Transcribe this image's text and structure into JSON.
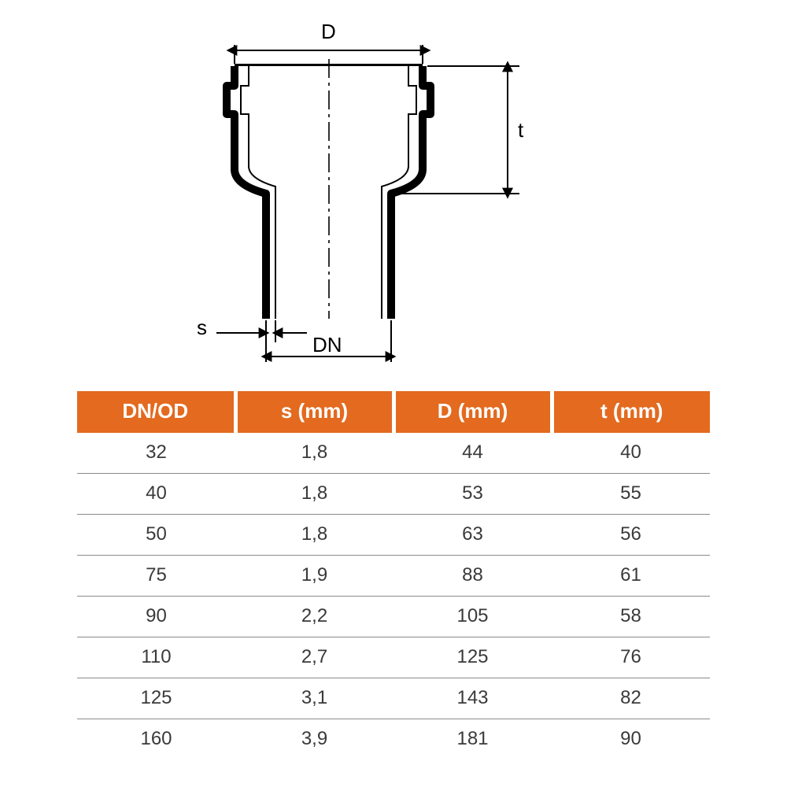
{
  "diagram": {
    "labels": {
      "D": "D",
      "t": "t",
      "s": "s",
      "DN": "DN"
    },
    "stroke_color": "#000000",
    "centerline_color": "#000000",
    "label_fontsize": 26
  },
  "table": {
    "type": "table",
    "header_bg": "#e36a1f",
    "header_fg": "#ffffff",
    "header_fontsize": 26,
    "cell_fontsize": 24,
    "cell_fg": "#3a3a3a",
    "row_border_color": "#8a8a8a",
    "gap_color": "#ffffff",
    "columns": [
      "DN/OD",
      "s (mm)",
      "D (mm)",
      "t (mm)"
    ],
    "rows": [
      [
        "32",
        "1,8",
        "44",
        "40"
      ],
      [
        "40",
        "1,8",
        "53",
        "55"
      ],
      [
        "50",
        "1,8",
        "63",
        "56"
      ],
      [
        "75",
        "1,9",
        "88",
        "61"
      ],
      [
        "90",
        "2,2",
        "105",
        "58"
      ],
      [
        "110",
        "2,7",
        "125",
        "76"
      ],
      [
        "125",
        "3,1",
        "143",
        "82"
      ],
      [
        "160",
        "3,9",
        "181",
        "90"
      ]
    ]
  }
}
